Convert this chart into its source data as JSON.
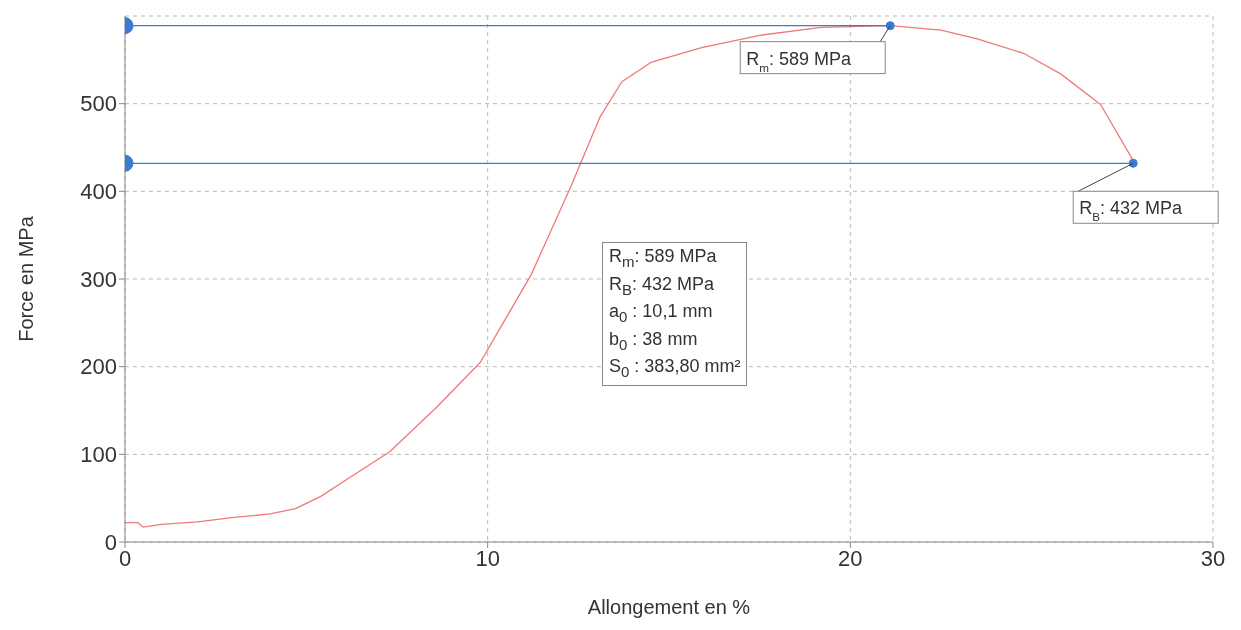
{
  "chart_data": {
    "type": "line",
    "xlabel": "Allongement en %",
    "ylabel": "Force en MPa",
    "xlim": [
      0,
      30
    ],
    "xticks": [
      0,
      10,
      20,
      30
    ],
    "ylim": [
      0,
      600
    ],
    "yticks": [
      0,
      100,
      200,
      300,
      400,
      500
    ],
    "grid": true,
    "line_style": "solid",
    "series": [
      {
        "color": "#f07878",
        "marker": "none",
        "x": [
          0,
          0.36,
          0.5,
          1,
          2,
          3,
          4,
          4.7,
          5.4,
          6.1,
          7.3,
          8.6,
          9.8,
          10.5,
          11.2,
          12.3,
          13.1,
          13.7,
          14.5,
          15.9,
          17.5,
          19.2,
          21.1,
          22.5,
          23.5,
          24.8,
          25.8,
          26.9,
          27.8
        ],
        "values": [
          22,
          22,
          17,
          20,
          23,
          28,
          32,
          38,
          52,
          71,
          103,
          154,
          205,
          255,
          305,
          406,
          485,
          525,
          547,
          564,
          578,
          587,
          589,
          584,
          574,
          557,
          534,
          499,
          435
        ]
      },
      {
        "color": "#3a7bd5",
        "marker": "circle",
        "x": [
          0,
          21.1
        ],
        "values": [
          589,
          589
        ]
      },
      {
        "color": "#3a7bd5",
        "marker": "circle",
        "x": [
          0,
          27.8
        ],
        "values": [
          432,
          432
        ]
      }
    ],
    "annotations": [
      {
        "text": "R$_{m}$: 589 MPa",
        "x": 21.1,
        "y": 589
      },
      {
        "text": "R$_{B}$: 432 MPa",
        "x": 27.8,
        "y": 432
      },
      "R$_{m}$: 589 MPa",
      "R$_{B}$: 432 MPa",
      "a$_{0}$ : 10,1 mm",
      "b$_{0}$ : 38 mm",
      "S$_{0}$ : 383,80 mm²"
    ]
  }
}
